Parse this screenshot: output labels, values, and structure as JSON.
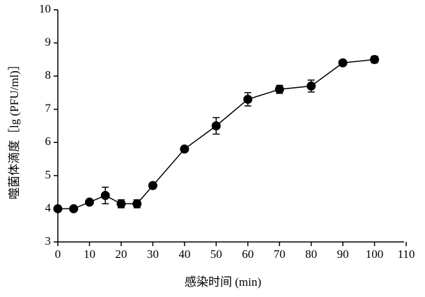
{
  "chart_data": {
    "type": "line",
    "x_label": "感染时间 (min)",
    "y_label": "噬菌体滴度［lg (PFU/ml)］",
    "x": [
      0,
      5,
      10,
      15,
      20,
      25,
      30,
      40,
      50,
      60,
      70,
      80,
      90,
      100
    ],
    "series": [
      {
        "color": "#000000",
        "values": [
          4.0,
          4.0,
          4.2,
          4.4,
          4.15,
          4.15,
          4.7,
          5.8,
          6.5,
          7.3,
          7.6,
          7.7,
          8.4,
          8.5
        ],
        "errors": [
          0.03,
          0.03,
          0.05,
          0.25,
          0.12,
          0.12,
          0.05,
          0.05,
          0.25,
          0.2,
          0.12,
          0.18,
          0.05,
          0.1
        ]
      }
    ],
    "xlim": [
      0,
      110
    ],
    "xticks": [
      0,
      10,
      20,
      30,
      40,
      50,
      60,
      70,
      80,
      90,
      100,
      110
    ],
    "ylim": [
      3,
      10
    ],
    "yticks": [
      3,
      4,
      5,
      6,
      7,
      8,
      9,
      10
    ]
  }
}
